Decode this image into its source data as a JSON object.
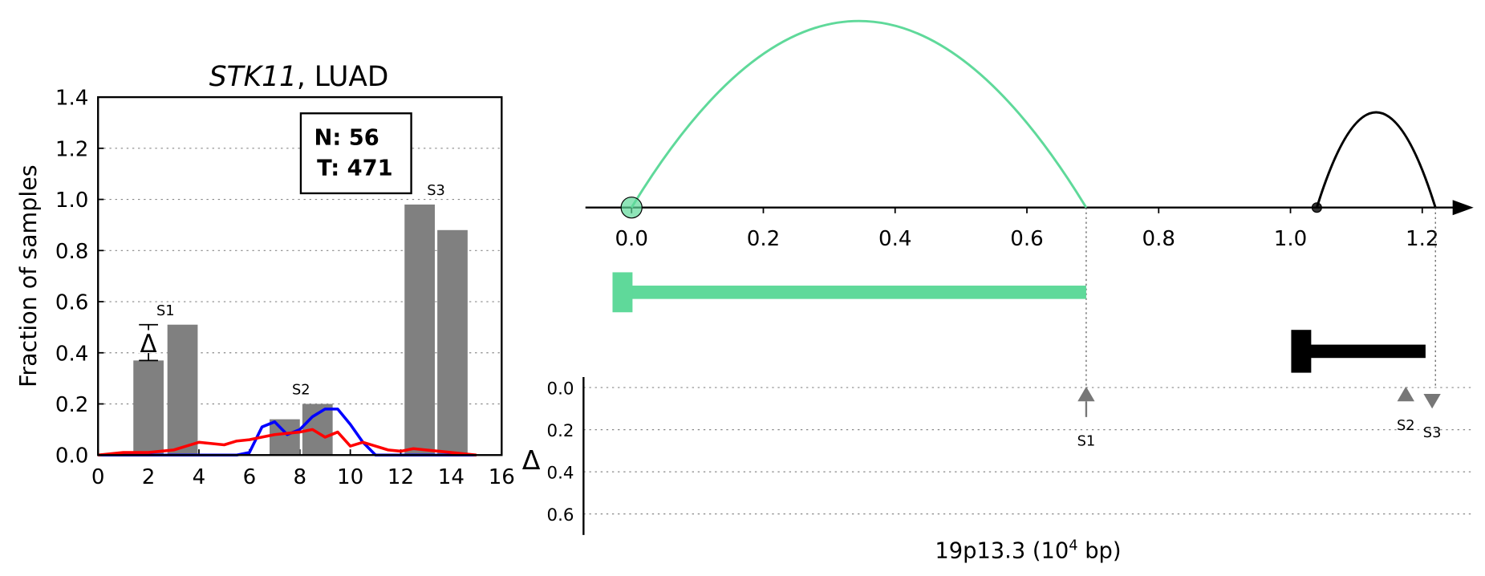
{
  "chart_data": [
    {
      "type": "bar",
      "title": [
        "STK11",
        ", LUAD"
      ],
      "ylabel": "Fraction of samples",
      "xlim": [
        0,
        16
      ],
      "xticks": [
        0,
        2,
        4,
        6,
        8,
        10,
        12,
        14,
        16
      ],
      "ylim": [
        0,
        1.4
      ],
      "yticks": [
        {
          "value": 0,
          "label": "0.0"
        },
        0.2,
        0.4,
        0.6,
        0.8,
        {
          "value": 1,
          "label": "1.0"
        },
        1.2,
        1.4
      ],
      "grid": true,
      "color": "#808080",
      "groups": [
        {
          "label": "S1",
          "x": [
            2,
            3.35
          ],
          "values": [
            0.37,
            0.51
          ]
        },
        {
          "label": "S2",
          "x": [
            7.4,
            8.7
          ],
          "values": [
            0.14,
            0.2
          ]
        },
        {
          "label": "S3",
          "x": [
            12.75,
            14.05
          ],
          "values": [
            0.98,
            0.88
          ]
        }
      ],
      "delta_label": "Δ",
      "box": [
        "N: 56",
        "T: 471"
      ],
      "x": [
        0,
        0.5,
        1,
        1.5,
        2,
        2.5,
        3,
        3.5,
        4,
        4.5,
        5,
        5.5,
        6,
        6.5,
        7,
        7.5,
        8,
        8.5,
        9,
        9.5,
        10,
        10.5,
        11,
        11.5,
        12,
        12.5,
        13,
        13.5,
        14,
        14.5,
        15
      ],
      "series": [
        {
          "color": "#0000ff",
          "values": [
            0,
            0,
            0,
            0,
            0,
            0,
            0,
            0,
            0,
            0,
            0,
            0,
            0.01,
            0.11,
            0.13,
            0.08,
            0.1,
            0.15,
            0.18,
            0.18,
            0.12,
            0.05,
            0,
            0,
            0,
            0,
            0,
            0,
            0,
            0,
            0
          ]
        },
        {
          "color": "#ff0000",
          "values": [
            0,
            0.005,
            0.01,
            0.01,
            0.01,
            0.015,
            0.02,
            0.035,
            0.05,
            0.045,
            0.04,
            0.055,
            0.06,
            0.07,
            0.08,
            0.085,
            0.09,
            0.1,
            0.07,
            0.09,
            0.035,
            0.05,
            0.035,
            0.02,
            0.015,
            0.025,
            0.02,
            0.015,
            0.01,
            0.005,
            0
          ]
        }
      ]
    },
    {
      "type": "arc",
      "xlim": [
        -0.07,
        1.275
      ],
      "xticks": [
        {
          "value": 0,
          "label": "0.0"
        },
        0.2,
        0.4,
        0.6,
        0.8,
        {
          "value": 1,
          "label": "1.0"
        },
        1.2
      ],
      "arcs": [
        {
          "start": 0,
          "end": 0.69,
          "color": "#5fd99a"
        },
        {
          "start": 1.04,
          "end": 1.22,
          "color": "#000000"
        }
      ],
      "features": [
        {
          "start": 0,
          "end": 0.69,
          "color": "#5fd99a"
        },
        {
          "start": 1.03,
          "end": 1.205,
          "color": "#000000"
        }
      ]
    },
    {
      "type": "delta",
      "ylabel": "Δ",
      "xlabel": [
        "19p13.3 (10",
        "4",
        " bp)"
      ],
      "ylim": [
        -0.05,
        0.7
      ],
      "yticks": [
        {
          "value": 0,
          "label": "0.0"
        },
        0.2,
        0.4,
        0.6
      ],
      "grid": true,
      "markers": [
        {
          "label": "S1",
          "x": 0.69,
          "value": 0.14,
          "direction": "up"
        },
        {
          "label": "S2",
          "x": 1.175,
          "value": 0.06,
          "direction": "up"
        },
        {
          "label": "S3",
          "x": 1.215,
          "value": 0.1,
          "direction": "down"
        }
      ]
    }
  ]
}
